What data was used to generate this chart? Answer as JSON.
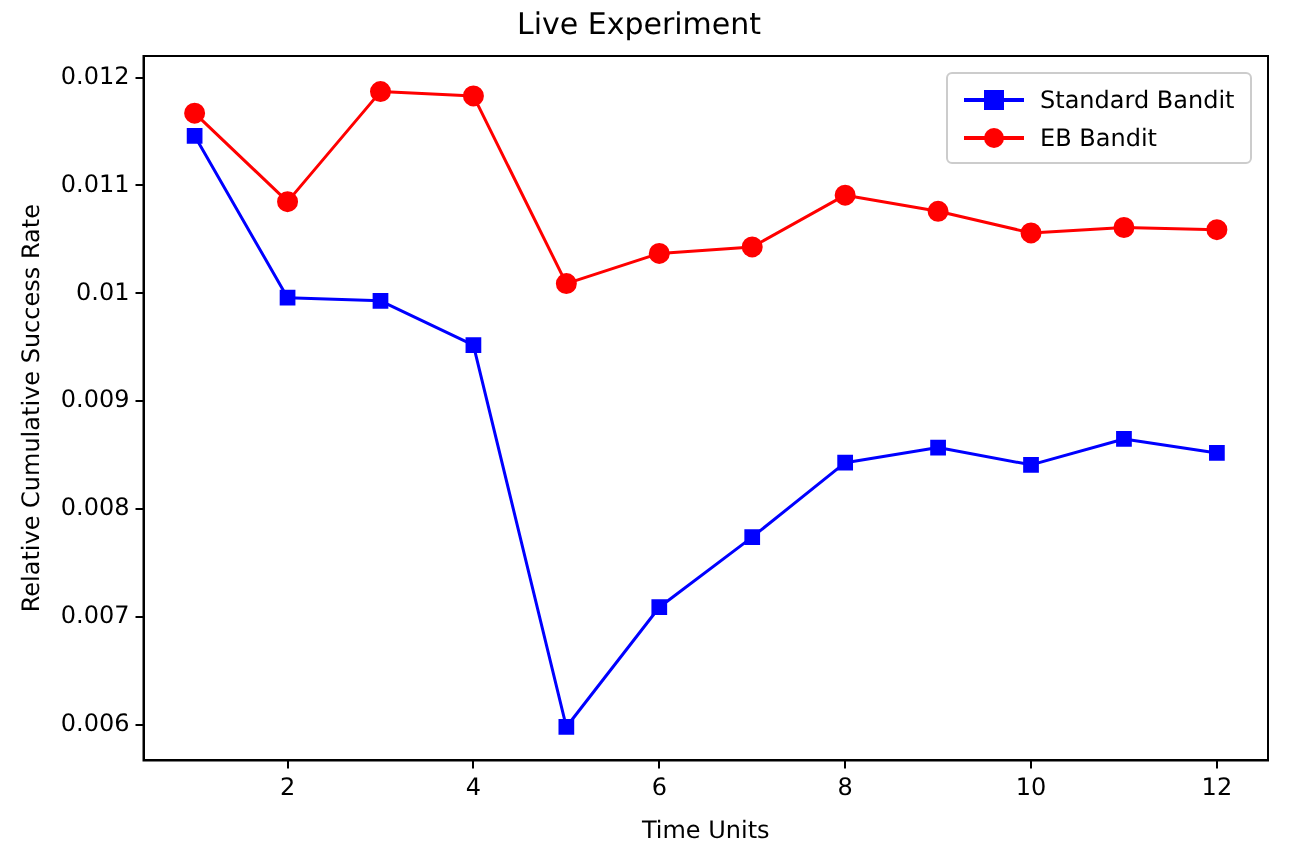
{
  "chart_data": {
    "type": "line",
    "title": "Live Experiment",
    "xlabel": "Time Units",
    "ylabel": "Relative Cumulative Success Rate",
    "x": [
      1,
      2,
      3,
      4,
      5,
      6,
      7,
      8,
      9,
      10,
      11,
      12
    ],
    "series": [
      {
        "name": "Standard Bandit",
        "color": "#0000ff",
        "marker": "square",
        "values": [
          0.01146,
          0.00996,
          0.00993,
          0.00952,
          0.00598,
          0.00709,
          0.00774,
          0.00843,
          0.00857,
          0.00841,
          0.00865,
          0.00852
        ]
      },
      {
        "name": "EB Bandit",
        "color": "#ff0000",
        "marker": "circle",
        "values": [
          0.01167,
          0.01085,
          0.01187,
          0.01183,
          0.01009,
          0.01037,
          0.01043,
          0.01091,
          0.01076,
          0.01056,
          0.01061,
          0.01059
        ]
      }
    ],
    "xlim": [
      0.45,
      12.55
    ],
    "xticks": [
      2,
      4,
      6,
      8,
      10,
      12
    ],
    "ylim": [
      0.00567,
      0.0122
    ],
    "yticks": [
      0.006,
      0.007,
      0.008,
      0.009,
      0.01,
      0.011,
      0.012
    ],
    "grid": false,
    "legend": "top right",
    "line_style": "solid"
  }
}
